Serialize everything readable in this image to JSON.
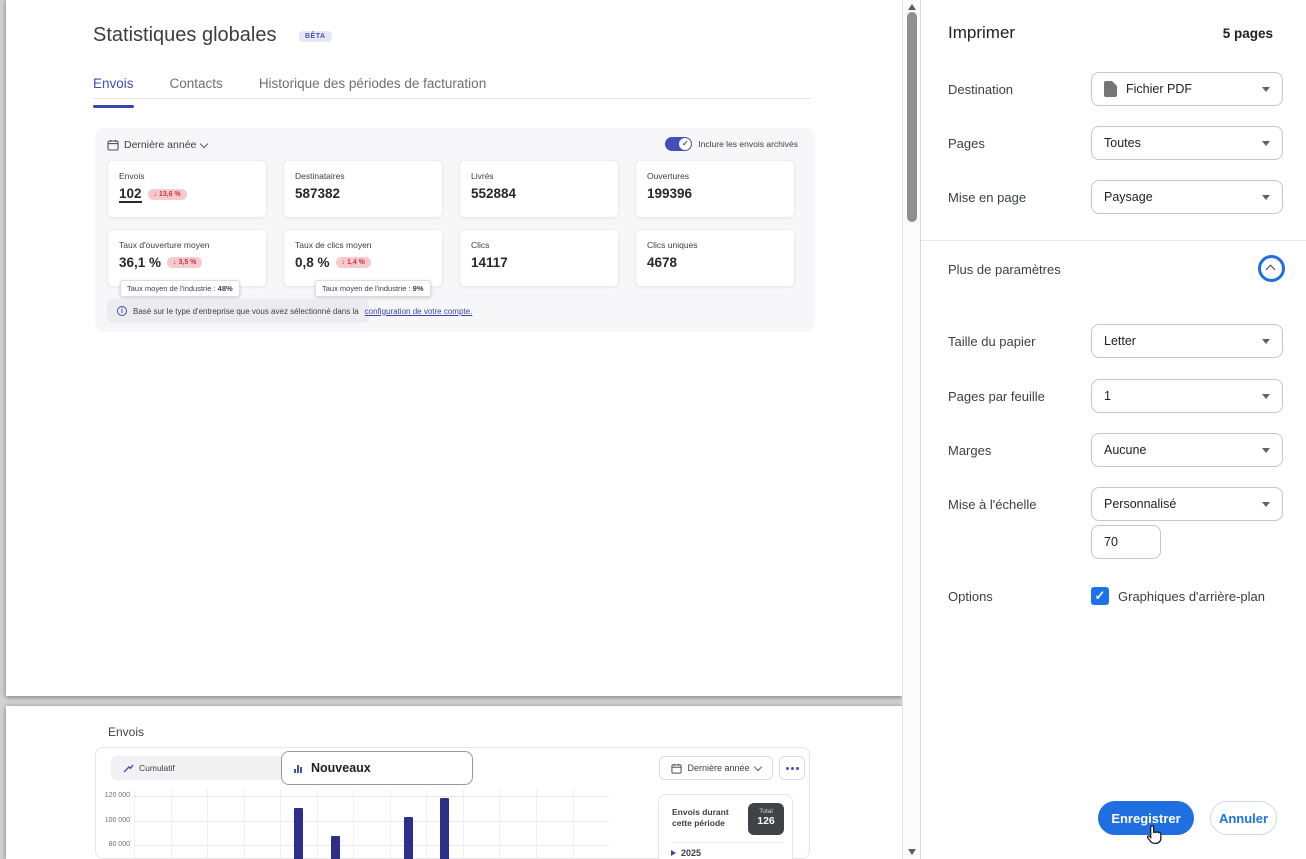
{
  "colors": {
    "accent": "#3f51b5",
    "bar": "#2d2f8a",
    "blue": "#1a73e8",
    "delta_bg": "#f6c9ce",
    "delta_text": "#c93241"
  },
  "preview": {
    "page1": {
      "title": "Statistiques globales",
      "beta_badge": "BÊTA",
      "tabs": [
        {
          "label": "Envois",
          "active": true
        },
        {
          "label": "Contacts",
          "active": false
        },
        {
          "label": "Historique des périodes de facturation",
          "active": false
        }
      ],
      "period_selector": {
        "label": "Dernière année"
      },
      "archived_toggle": {
        "label": "Inclure les envois archivés",
        "on": true
      },
      "cards": [
        {
          "label": "Envois",
          "value": "102",
          "delta": "↓ 13,6 %"
        },
        {
          "label": "Destinataires",
          "value": "587382"
        },
        {
          "label": "Livrés",
          "value": "552884"
        },
        {
          "label": "Ouvertures",
          "value": "199396"
        },
        {
          "label": "Taux d'ouverture moyen",
          "value": "36,1 %",
          "delta": "↓ 3,5 %",
          "tooltip_label": "Taux moyen de l'industrie :",
          "tooltip_value": "48%"
        },
        {
          "label": "Taux de clics moyen",
          "value": "0,8 %",
          "delta": "↓ 1,4 %",
          "tooltip_label": "Taux moyen de l'industrie :",
          "tooltip_value": "9%"
        },
        {
          "label": "Clics",
          "value": "14117"
        },
        {
          "label": "Clics uniques",
          "value": "4678"
        }
      ],
      "note": {
        "text": "Basé sur le type d'entreprise que vous avez sélectionné dans la",
        "link": "configuration de votre compte."
      }
    },
    "page2": {
      "heading": "Envois",
      "view_toggle": {
        "options": [
          "Nouveaux",
          "Cumulatif"
        ],
        "selected": "Nouveaux"
      },
      "period_selector": {
        "label": "Dernière année"
      },
      "summary": {
        "title": "Envois durant cette période",
        "total_label": "Total",
        "total_value": "126",
        "year": "2025"
      }
    }
  },
  "chart_data": {
    "type": "bar",
    "title": "Envois",
    "legend_position": "none",
    "grid": true,
    "x_axis_visible": false,
    "columns_total": 13,
    "y_ticks": [
      {
        "label": "120 000",
        "value": 120000
      },
      {
        "label": "100 000",
        "value": 100000
      },
      {
        "label": "80 000",
        "value": 80000
      }
    ],
    "series": [
      {
        "name": "Nouveaux",
        "points": [
          {
            "column": 5,
            "value": 110000
          },
          {
            "column": 6,
            "value": 87000
          },
          {
            "column": 8,
            "value": 103000
          },
          {
            "column": 9,
            "value": 118000
          }
        ]
      }
    ]
  },
  "print_panel": {
    "title": "Imprimer",
    "pages_count": "5 pages",
    "fields": {
      "destination": {
        "label": "Destination",
        "value": "Fichier PDF"
      },
      "pages": {
        "label": "Pages",
        "value": "Toutes"
      },
      "layout": {
        "label": "Mise en page",
        "value": "Paysage"
      },
      "more_settings": "Plus de paramètres",
      "paper_size": {
        "label": "Taille du papier",
        "value": "Letter"
      },
      "pages_per_sheet": {
        "label": "Pages par feuille",
        "value": "1"
      },
      "margins": {
        "label": "Marges",
        "value": "Aucune"
      },
      "scale": {
        "label": "Mise à l'échelle",
        "value": "Personnalisé",
        "custom_value": "70"
      },
      "options": {
        "label": "Options",
        "checkbox_label": "Graphiques d'arrière-plan",
        "checked": true
      }
    },
    "buttons": {
      "save": "Enregistrer",
      "cancel": "Annuler"
    }
  }
}
